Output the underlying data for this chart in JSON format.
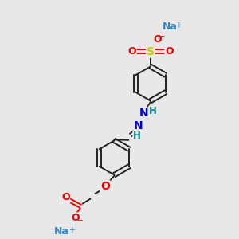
{
  "bg_color": "#e8e8e8",
  "bond_color": "#222222",
  "S_color": "#cccc00",
  "O_color": "#ee0000",
  "N_color": "#0000cc",
  "Na_color": "#3388cc",
  "H_color": "#008888",
  "lw": 1.4,
  "r": 0.72,
  "xlim": [
    0,
    10
  ],
  "ylim": [
    0,
    10
  ]
}
